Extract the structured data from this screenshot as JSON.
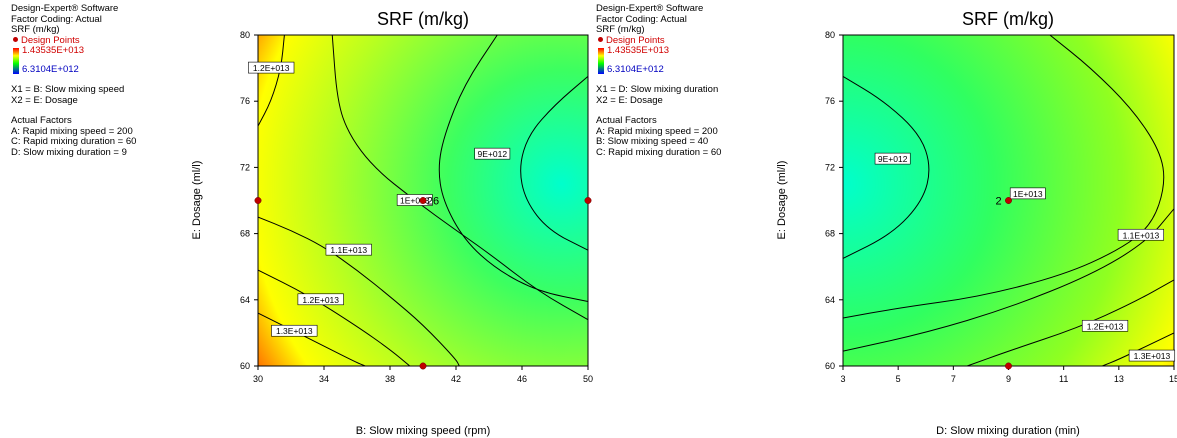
{
  "panels": [
    {
      "header_lines": [
        "Design-Expert® Software",
        "Factor Coding: Actual",
        "SRF (m/kg)"
      ],
      "design_points_label": "Design Points",
      "colorbar_max": "1.43535E+013",
      "colorbar_min": "6.3104E+012",
      "x_factor": "X1 = B: Slow mixing speed",
      "y_factor": "X2 = E: Dosage",
      "actual_factors_title": "Actual Factors",
      "actual_factors": [
        "A: Rapid mixing speed = 200",
        "C: Rapid mixing duration = 60",
        "D: Slow mixing duration = 9"
      ]
    },
    {
      "header_lines": [
        "Design-Expert® Software",
        "Factor Coding: Actual",
        "SRF (m/kg)"
      ],
      "design_points_label": "Design Points",
      "colorbar_max": "1.43535E+013",
      "colorbar_min": "6.3104E+012",
      "x_factor": "X1 = D: Slow mixing duration",
      "y_factor": "X2 = E: Dosage",
      "actual_factors_title": "Actual Factors",
      "actual_factors": [
        "A: Rapid mixing speed = 200",
        "B: Slow mixing speed = 40",
        "C: Rapid mixing duration = 60"
      ]
    }
  ],
  "chart_data": [
    {
      "type": "contour",
      "title": "SRF (m/kg)",
      "xlabel": "B: Slow mixing speed (rpm)",
      "ylabel": "E: Dosage (ml/l)",
      "xlim": [
        30,
        50
      ],
      "ylim": [
        60,
        80
      ],
      "xticks": [
        30,
        34,
        38,
        42,
        46,
        50
      ],
      "yticks": [
        60,
        64,
        68,
        72,
        76,
        80
      ],
      "colorscale": [
        "#ff2000",
        "#ffff00",
        "#00ff40",
        "#00ffcc"
      ],
      "z_range": [
        6310400000000.0,
        14353500000000.0
      ],
      "contours": [
        {
          "label": "1.3E+013",
          "points": [
            [
              30,
              63.2
            ],
            [
              32,
              62.2
            ],
            [
              34,
              61.2
            ],
            [
              36,
              60.2
            ],
            [
              36.5,
              60
            ]
          ],
          "label_at": [
            32.2,
            62.1
          ]
        },
        {
          "label": "1.2E+013",
          "points": [
            [
              30,
              65.8
            ],
            [
              33,
              64.3
            ],
            [
              36,
              62.4
            ],
            [
              38,
              61
            ],
            [
              39.2,
              60
            ]
          ],
          "label_at": [
            33.8,
            64.0
          ]
        },
        {
          "label": "1.1E+013",
          "points": [
            [
              30,
              69
            ],
            [
              32,
              68.2
            ],
            [
              34,
              67.2
            ],
            [
              36,
              65.8
            ],
            [
              38,
              64.2
            ],
            [
              40,
              62.5
            ],
            [
              42,
              60.4
            ],
            [
              42.2,
              60
            ]
          ],
          "label_at": [
            35.5,
            67.0
          ]
        },
        {
          "label": "1E+013",
          "points": [
            [
              34.5,
              80
            ],
            [
              34.8,
              76
            ],
            [
              35.5,
              74
            ],
            [
              37,
              72
            ],
            [
              39.5,
              70
            ],
            [
              42,
              68.2
            ],
            [
              44,
              66.8
            ],
            [
              47,
              64.5
            ],
            [
              50,
              62.8
            ]
          ],
          "label_at": [
            39.5,
            70
          ]
        },
        {
          "label": "9E+012",
          "points": [
            [
              44.5,
              80
            ],
            [
              42.5,
              77
            ],
            [
              41.3,
              74
            ],
            [
              40.9,
              72
            ],
            [
              41.2,
              70
            ],
            [
              42.5,
              67.6
            ],
            [
              44.5,
              65.8
            ],
            [
              47,
              64.5
            ],
            [
              50,
              63.9
            ]
          ],
          "label_at": [
            44.2,
            72.8
          ]
        },
        {
          "label": "",
          "points": [
            [
              50,
              77.5
            ],
            [
              48,
              75.8
            ],
            [
              46.4,
              74
            ],
            [
              45.8,
              72
            ],
            [
              46.2,
              70
            ],
            [
              47.6,
              68.2
            ],
            [
              50,
              67
            ]
          ],
          "label_at": null
        },
        {
          "label": "1.2E+013",
          "points": [
            [
              30,
              74.5
            ],
            [
              30.8,
              76
            ],
            [
              31.4,
              78
            ],
            [
              31.6,
              80
            ]
          ],
          "label_at": [
            30.8,
            78.0
          ]
        }
      ],
      "design_points": [
        {
          "x": 30,
          "y": 70,
          "label": ""
        },
        {
          "x": 50,
          "y": 70,
          "label": ""
        },
        {
          "x": 40,
          "y": 60,
          "label": ""
        },
        {
          "x": 40,
          "y": 70,
          "label": "26"
        }
      ]
    },
    {
      "type": "contour",
      "title": "SRF (m/kg)",
      "xlabel": "D: Slow mixing duration (min)",
      "ylabel": "E: Dosage (ml/l)",
      "xlim": [
        3,
        15
      ],
      "ylim": [
        60,
        80
      ],
      "xticks": [
        3,
        5,
        7,
        9,
        11,
        13,
        15
      ],
      "yticks": [
        60,
        64,
        68,
        72,
        76,
        80
      ],
      "colorscale": [
        "#ff8000",
        "#ffff00",
        "#00ff40",
        "#00ffcc"
      ],
      "z_range": [
        6310400000000.0,
        14353500000000.0
      ],
      "contours": [
        {
          "label": "9E+012",
          "points": [
            [
              3,
              77.5
            ],
            [
              4.5,
              76
            ],
            [
              5.8,
              74
            ],
            [
              6.2,
              72
            ],
            [
              5.9,
              70
            ],
            [
              4.8,
              68
            ],
            [
              3,
              66.5
            ]
          ],
          "label_at": [
            4.8,
            72.5
          ]
        },
        {
          "label": "1E+013",
          "points": [
            [
              10.5,
              80
            ],
            [
              12,
              78
            ],
            [
              13.5,
              75.5
            ],
            [
              14.5,
              73
            ],
            [
              14.7,
              71
            ],
            [
              14.2,
              68.5
            ],
            [
              13,
              67
            ],
            [
              11,
              65.5
            ],
            [
              8,
              64.2
            ],
            [
              5,
              63.5
            ],
            [
              3,
              62.9
            ]
          ],
          "label_at": [
            9.7,
            70.4
          ]
        },
        {
          "label": "1.1E+013",
          "points": [
            [
              15,
              69.5
            ],
            [
              14,
              67.5
            ],
            [
              12,
              65.5
            ],
            [
              9,
              63.5
            ],
            [
              6,
              62
            ],
            [
              3,
              60.9
            ]
          ],
          "label_at": [
            13.8,
            67.9
          ]
        },
        {
          "label": "1.2E+013",
          "points": [
            [
              15,
              65.2
            ],
            [
              13.5,
              63.8
            ],
            [
              11.5,
              62.3
            ],
            [
              9,
              60.9
            ],
            [
              7.5,
              60
            ]
          ],
          "label_at": [
            12.5,
            62.4
          ]
        },
        {
          "label": "1.3E+013",
          "points": [
            [
              15,
              62
            ],
            [
              14,
              61.2
            ],
            [
              13,
              60.4
            ],
            [
              12.4,
              60
            ]
          ],
          "label_at": [
            14.2,
            60.6
          ]
        }
      ],
      "design_points": [
        {
          "x": 9,
          "y": 70,
          "label": "2"
        },
        {
          "x": 9,
          "y": 60,
          "label": ""
        }
      ]
    }
  ]
}
